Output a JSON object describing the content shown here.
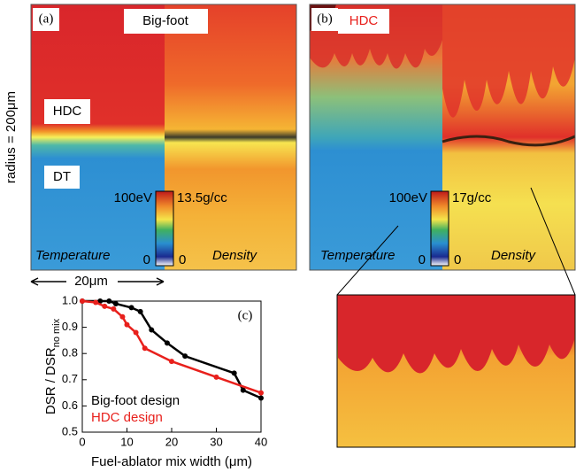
{
  "panel_a": {
    "label": "(a)",
    "title": "Big-foot",
    "region_top": "HDC",
    "region_bottom": "DT",
    "temp_max": "100eV",
    "density_max": "13.5g/cc",
    "temp_min": "0",
    "density_min": "0",
    "left_caption": "Temperature",
    "right_caption": "Density"
  },
  "panel_b": {
    "label": "(b)",
    "title": "HDC",
    "temp_max": "100eV",
    "density_max": "17g/cc",
    "temp_min": "0",
    "density_min": "0",
    "left_caption": "Temperature",
    "right_caption": "Density"
  },
  "scale": {
    "radius": "radius = 200μm",
    "width": "20μm"
  },
  "chart_data": {
    "type": "line",
    "panel_label": "(c)",
    "xlabel": "Fuel-ablator mix width (μm)",
    "ylabel": "DSR / DSR",
    "ylabel_subscript": "no mix",
    "xlim": [
      0,
      40
    ],
    "xticks": [
      0,
      10,
      20,
      30,
      40
    ],
    "ylim": [
      0.5,
      1.0
    ],
    "yticks": [
      0.5,
      0.6,
      0.7,
      0.8,
      0.9,
      {
        "value": 1.0,
        "label": "1.0"
      }
    ],
    "series": [
      {
        "name": "Big-foot design",
        "color": "#000000",
        "x": [
          0,
          4,
          6,
          7.5,
          11,
          13,
          15.5,
          19,
          23,
          34,
          36,
          40
        ],
        "values": [
          1.0,
          1.0,
          1.0,
          0.99,
          0.975,
          0.96,
          0.89,
          0.84,
          0.79,
          0.725,
          0.66,
          0.63
        ]
      },
      {
        "name": "HDC design",
        "color": "#e8201c",
        "x": [
          0,
          3,
          5,
          7,
          9,
          10,
          12,
          14,
          20,
          30,
          40
        ],
        "values": [
          1.0,
          0.995,
          0.98,
          0.97,
          0.94,
          0.91,
          0.88,
          0.82,
          0.77,
          0.71,
          0.65
        ]
      }
    ]
  }
}
